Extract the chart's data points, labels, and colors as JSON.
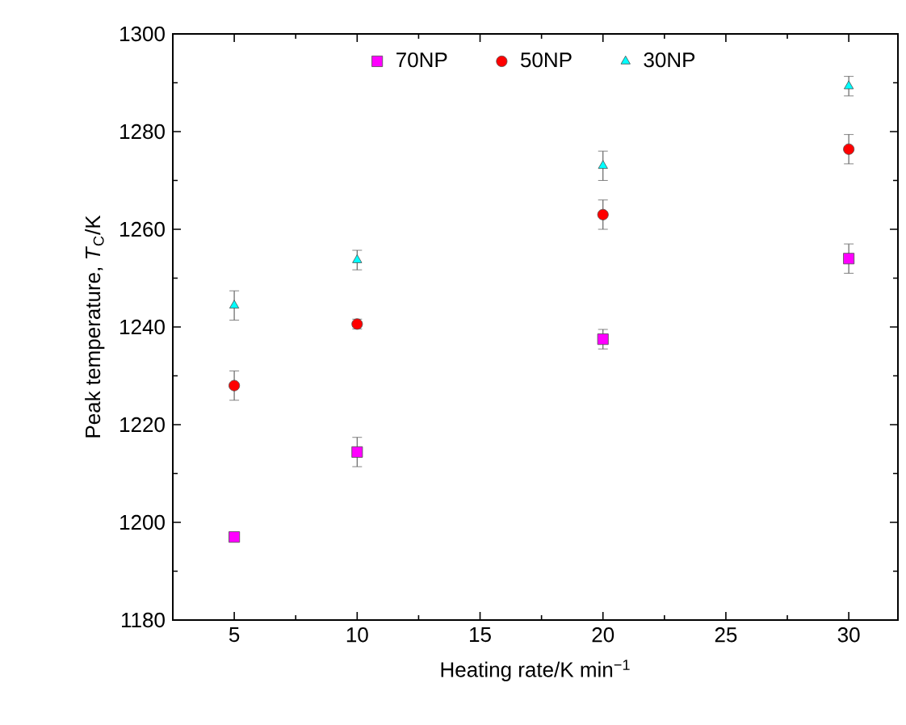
{
  "chart_data": {
    "type": "scatter",
    "xlabel": "Heating rate/K min$^{−1}$",
    "ylabel": "Peak temperature, *T*$_{C}$/K",
    "x": [
      5,
      10,
      20,
      30
    ],
    "xlim": [
      2.5,
      32
    ],
    "xticks": [
      5,
      10,
      15,
      20,
      25,
      30
    ],
    "ylim": [
      1180,
      1300
    ],
    "yticks": [
      1180,
      1200,
      1220,
      1240,
      1260,
      1280,
      1300
    ],
    "legend": "top",
    "grid": false,
    "series": [
      {
        "name": "70NP",
        "color": "#ff00ff",
        "marker": "square",
        "values": [
          1197,
          1214.4,
          1237.5,
          1254
        ],
        "errors": [
          0.5,
          3,
          2,
          3
        ]
      },
      {
        "name": "50NP",
        "color": "#ff0000",
        "marker": "circle",
        "values": [
          1228,
          1240.6,
          1263,
          1276.4
        ],
        "errors": [
          3,
          1,
          3,
          3
        ]
      },
      {
        "name": "30NP",
        "color": "#00ffff",
        "marker": "triangle",
        "values": [
          1244.4,
          1253.7,
          1273,
          1289.3
        ],
        "errors": [
          3,
          2,
          3,
          2
        ]
      }
    ]
  }
}
